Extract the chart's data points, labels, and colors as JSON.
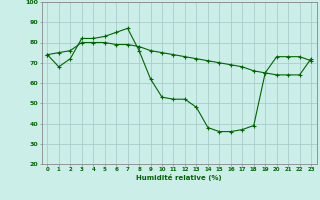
{
  "xlabel": "Humidité relative (%)",
  "background_color": "#cceee8",
  "grid_color": "#aacccc",
  "line_color": "#006600",
  "ylim": [
    20,
    100
  ],
  "xlim": [
    -0.5,
    23.5
  ],
  "yticks": [
    20,
    30,
    40,
    50,
    60,
    70,
    80,
    90,
    100
  ],
  "xticks": [
    0,
    1,
    2,
    3,
    4,
    5,
    6,
    7,
    8,
    9,
    10,
    11,
    12,
    13,
    14,
    15,
    16,
    17,
    18,
    19,
    20,
    21,
    22,
    23
  ],
  "series1_x": [
    0,
    1,
    2,
    3,
    4,
    5,
    6,
    7,
    8,
    9,
    10,
    11,
    12,
    13,
    14,
    15,
    16,
    17,
    18,
    19,
    20,
    21,
    22,
    23
  ],
  "series1_y": [
    74,
    68,
    72,
    82,
    82,
    83,
    85,
    87,
    76,
    62,
    53,
    52,
    52,
    48,
    38,
    36,
    36,
    37,
    39,
    65,
    64,
    64,
    64,
    72
  ],
  "series2_x": [
    0,
    1,
    2,
    3,
    4,
    5,
    6,
    7,
    8,
    9,
    10,
    11,
    12,
    13,
    14,
    15,
    16,
    17,
    18,
    19,
    20,
    21,
    22,
    23
  ],
  "series2_y": [
    74,
    75,
    76,
    80,
    80,
    80,
    79,
    79,
    78,
    76,
    75,
    74,
    73,
    72,
    71,
    70,
    69,
    68,
    66,
    65,
    73,
    73,
    73,
    71
  ]
}
